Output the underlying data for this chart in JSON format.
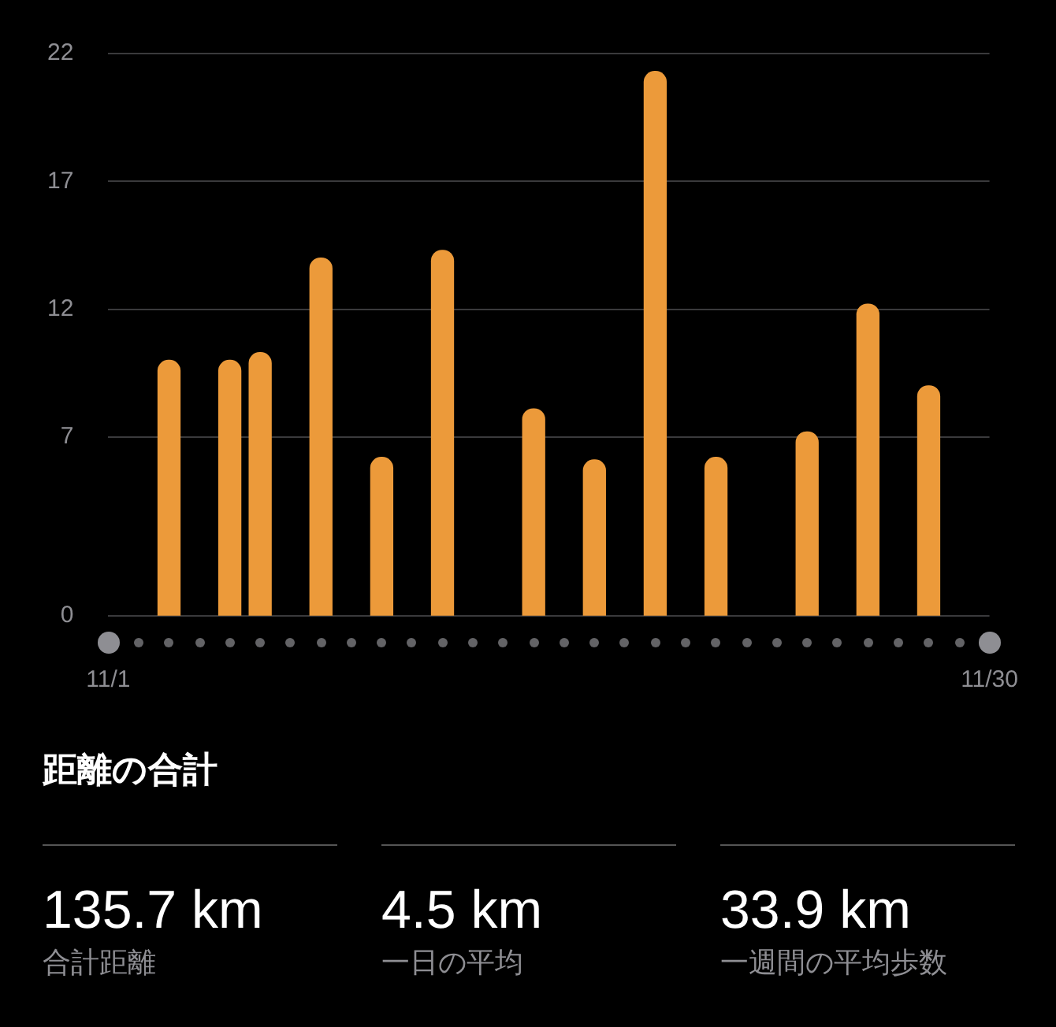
{
  "chart_data": [
    {
      "type": "bar",
      "categories": [
        "11/1",
        null,
        null,
        null,
        null,
        null,
        null,
        null,
        null,
        null,
        null,
        null,
        null,
        null,
        null,
        null,
        null,
        null,
        null,
        null,
        null,
        null,
        null,
        null,
        null,
        null,
        null,
        null,
        null,
        "11/30"
      ],
      "values": [
        null,
        null,
        10,
        null,
        10,
        10.3,
        null,
        14,
        null,
        6.2,
        null,
        14.3,
        null,
        null,
        8.1,
        null,
        6.1,
        null,
        21.3,
        null,
        6.2,
        null,
        null,
        7.2,
        null,
        12.2,
        null,
        9,
        null,
        null
      ],
      "color": "#ec9a3a",
      "ylim": [
        0,
        22
      ],
      "yticks": [
        0,
        7,
        12,
        17,
        22
      ],
      "grid": "y"
    },
    {
      "type": "other",
      "title": "距離の合計",
      "annotations": [
        "135.7 km",
        "合計距離",
        "4.5 km",
        "一日の平均",
        "33.9 km",
        "一週間の平均歩数"
      ]
    }
  ]
}
